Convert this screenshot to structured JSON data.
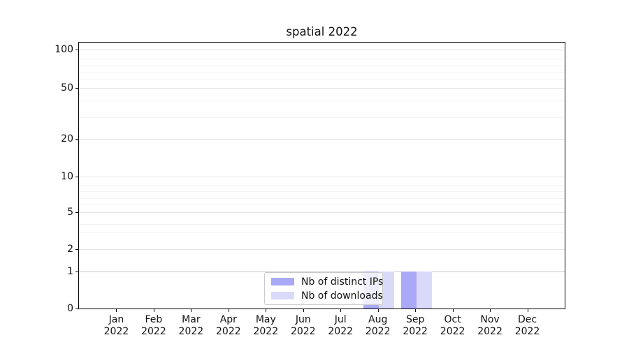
{
  "chart_data": {
    "type": "bar",
    "title": "spatial 2022",
    "categories": [
      "Jan 2022",
      "Feb 2022",
      "Mar 2022",
      "Apr 2022",
      "May 2022",
      "Jun 2022",
      "Jul 2022",
      "Aug 2022",
      "Sep 2022",
      "Oct 2022",
      "Nov 2022",
      "Dec 2022"
    ],
    "series": [
      {
        "name": "Nb of distinct IPs",
        "color": "#a9a9f8",
        "values": [
          0,
          0,
          0,
          0,
          0,
          0,
          0,
          1,
          1,
          0,
          0,
          0
        ]
      },
      {
        "name": "Nb of downloads",
        "color": "#d9d9f9",
        "values": [
          0,
          0,
          0,
          0,
          0,
          0,
          0,
          1,
          1,
          0,
          0,
          0
        ]
      }
    ],
    "xlabel": "",
    "ylabel": "",
    "y_ticks": [
      0,
      1,
      2,
      5,
      10,
      20,
      50,
      100
    ],
    "ylim": [
      0,
      115
    ],
    "yscale": "symlog",
    "grid": "major-and-minor horizontal",
    "legend_position": "lower center",
    "colors": {
      "axis": "#000000",
      "major_grid": "#e4e4e4",
      "minor_grid": "#f3f3f3",
      "unit_line": "#c6c6c6",
      "legend_border": "#cbcbcb"
    }
  }
}
